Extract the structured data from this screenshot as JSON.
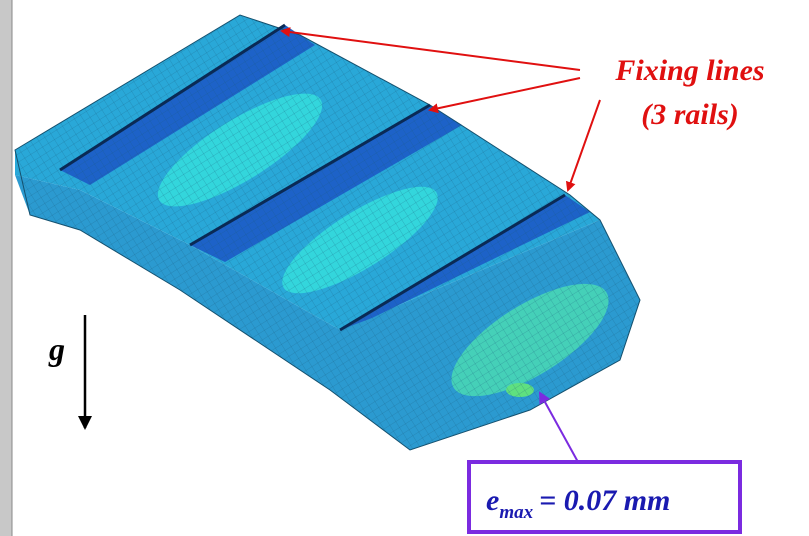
{
  "annotations": {
    "fixing_label": "Fixing lines",
    "fixing_sublabel": "(3 rails)",
    "gravity_label": "g",
    "emax": {
      "symbol": "e",
      "subscript": "max",
      "value": "= 0.07 mm"
    }
  }
}
